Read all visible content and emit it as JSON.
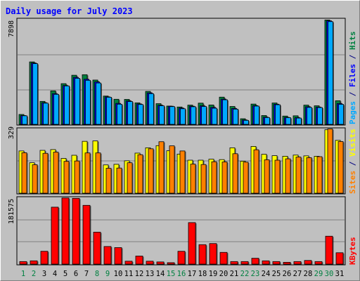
{
  "chart_data": [
    {
      "type": "bar",
      "title": "Daily usage for July 2023",
      "categories": [
        "1",
        "2",
        "3",
        "4",
        "5",
        "6",
        "7",
        "8",
        "9",
        "10",
        "11",
        "12",
        "13",
        "14",
        "15",
        "16",
        "17",
        "18",
        "19",
        "20",
        "21",
        "22",
        "23",
        "24",
        "25",
        "26",
        "27",
        "28",
        "29",
        "30",
        "31"
      ],
      "weekend_days": [
        "1",
        "2",
        "8",
        "9",
        "15",
        "16",
        "22",
        "23",
        "29",
        "30"
      ],
      "y_max_label": "7898",
      "ylim": [
        0,
        7898
      ],
      "grid": true,
      "ylabel_parts": [
        {
          "text": "Pages",
          "color": "#00a8ff"
        },
        {
          "text": " / ",
          "color": "#000080"
        },
        {
          "text": "Files",
          "color": "#0000ff"
        },
        {
          "text": " / ",
          "color": "#000080"
        },
        {
          "text": "Hits",
          "color": "#008040"
        }
      ],
      "series": [
        {
          "name": "Hits",
          "color": "#008040",
          "values": [
            740,
            4680,
            1720,
            2510,
            3050,
            3680,
            3720,
            3320,
            2120,
            1880,
            1870,
            1610,
            2470,
            1550,
            1370,
            1300,
            1440,
            1590,
            1450,
            2040,
            1340,
            420,
            1520,
            660,
            1600,
            620,
            640,
            1440,
            1390,
            7820,
            1770
          ]
        },
        {
          "name": "Files",
          "color": "#0000ff",
          "values": [
            660,
            4600,
            1620,
            2300,
            2910,
            3520,
            3380,
            3180,
            2060,
            1570,
            1760,
            1530,
            2360,
            1430,
            1360,
            1220,
            1360,
            1390,
            1270,
            1890,
            1190,
            330,
            1400,
            540,
            1510,
            520,
            500,
            1320,
            1290,
            7760,
            1560
          ]
        },
        {
          "name": "Pages",
          "color": "#00a8ff",
          "values": [
            640,
            4550,
            1590,
            2250,
            2880,
            3450,
            3300,
            3100,
            2030,
            1510,
            1710,
            1490,
            2300,
            1390,
            1330,
            1170,
            1320,
            1340,
            1210,
            1840,
            1140,
            300,
            1370,
            510,
            1470,
            500,
            470,
            1270,
            1260,
            7700,
            1500
          ]
        }
      ]
    },
    {
      "type": "bar",
      "y_max_label": "329",
      "ylim": [
        0,
        329
      ],
      "grid": true,
      "ylabel_parts": [
        {
          "text": "Sites",
          "color": "#ff8000"
        },
        {
          "text": " / ",
          "color": "#000080"
        },
        {
          "text": "Visits",
          "color": "#ffff00"
        }
      ],
      "series": [
        {
          "name": "Visits",
          "color": "#ffff00",
          "values": [
            215,
            155,
            218,
            222,
            177,
            193,
            264,
            266,
            144,
            147,
            165,
            204,
            231,
            242,
            216,
            199,
            168,
            168,
            173,
            171,
            231,
            163,
            238,
            198,
            191,
            188,
            194,
            190,
            188,
            323,
            269
          ]
        },
        {
          "name": "Sites",
          "color": "#ff8000",
          "values": [
            206,
            145,
            203,
            209,
            162,
            164,
            205,
            205,
            127,
            128,
            155,
            196,
            226,
            262,
            241,
            215,
            148,
            146,
            160,
            159,
            201,
            158,
            221,
            170,
            168,
            175,
            184,
            181,
            186,
            327,
            263
          ]
        }
      ]
    },
    {
      "type": "bar",
      "y_max_label": "181575",
      "ylim": [
        0,
        181575
      ],
      "grid": true,
      "ylabel_parts": [
        {
          "text": "KBytes",
          "color": "#ff0000"
        }
      ],
      "series": [
        {
          "name": "KBytes",
          "color": "#ff0000",
          "values": [
            7000,
            9000,
            35000,
            155000,
            180000,
            179000,
            160000,
            87000,
            48000,
            45000,
            8000,
            22000,
            8000,
            6000,
            4000,
            35000,
            113000,
            53000,
            56000,
            32000,
            7000,
            7000,
            16000,
            9000,
            7000,
            5000,
            7000,
            10000,
            7000,
            76000,
            31000
          ]
        }
      ]
    }
  ]
}
